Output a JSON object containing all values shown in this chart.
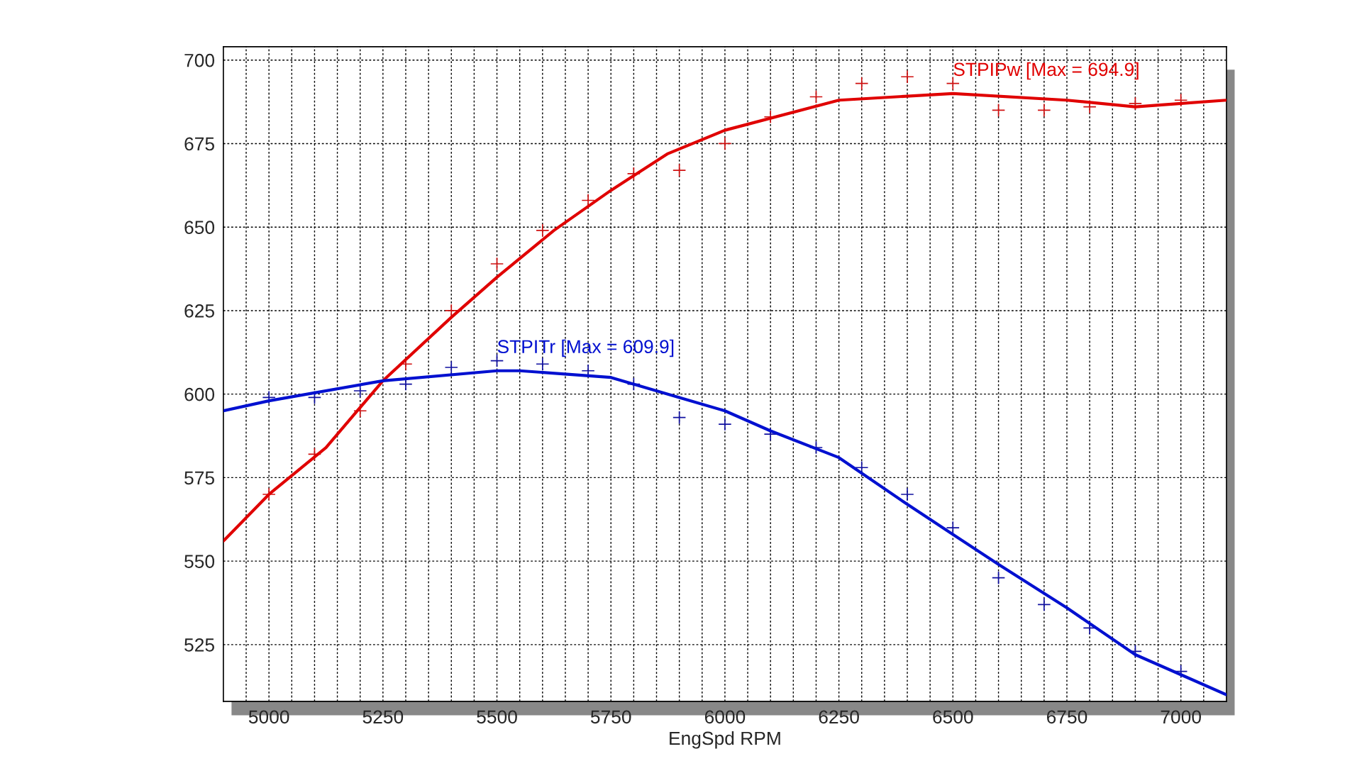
{
  "chart_data": {
    "type": "line",
    "xlabel": "EngSpd RPM",
    "xlim": [
      4900,
      7100
    ],
    "ylim": [
      508,
      704
    ],
    "xticks": [
      {
        "value": 4950,
        "label": null
      },
      5000,
      {
        "value": 5050,
        "label": null
      },
      {
        "value": 5100,
        "label": null
      },
      {
        "value": 5150,
        "label": null
      },
      {
        "value": 5200,
        "label": null
      },
      5250,
      {
        "value": 5300,
        "label": null
      },
      {
        "value": 5350,
        "label": null
      },
      {
        "value": 5400,
        "label": null
      },
      {
        "value": 5450,
        "label": null
      },
      5500,
      {
        "value": 5550,
        "label": null
      },
      {
        "value": 5600,
        "label": null
      },
      {
        "value": 5650,
        "label": null
      },
      {
        "value": 5700,
        "label": null
      },
      5750,
      {
        "value": 5800,
        "label": null
      },
      {
        "value": 5850,
        "label": null
      },
      {
        "value": 5900,
        "label": null
      },
      {
        "value": 5950,
        "label": null
      },
      6000,
      {
        "value": 6050,
        "label": null
      },
      {
        "value": 6100,
        "label": null
      },
      {
        "value": 6150,
        "label": null
      },
      {
        "value": 6200,
        "label": null
      },
      6250,
      {
        "value": 6300,
        "label": null
      },
      {
        "value": 6350,
        "label": null
      },
      {
        "value": 6400,
        "label": null
      },
      {
        "value": 6450,
        "label": null
      },
      6500,
      {
        "value": 6550,
        "label": null
      },
      {
        "value": 6600,
        "label": null
      },
      {
        "value": 6650,
        "label": null
      },
      {
        "value": 6700,
        "label": null
      },
      6750,
      {
        "value": 6800,
        "label": null
      },
      {
        "value": 6850,
        "label": null
      },
      {
        "value": 6900,
        "label": null
      },
      {
        "value": 6950,
        "label": null
      },
      7000,
      {
        "value": 7050,
        "label": null
      }
    ],
    "yticks": [
      525,
      550,
      575,
      600,
      625,
      650,
      675,
      700
    ],
    "grid": true,
    "legend": false,
    "series": [
      {
        "type": "scatter",
        "marker": "cross",
        "color": "#d01010",
        "x": [
          5000,
          5100,
          5200,
          5300,
          5400,
          5500,
          5600,
          5700,
          5800,
          5900,
          6000,
          6100,
          6200,
          6300,
          6400,
          6500,
          6600,
          6700,
          6800,
          6900,
          7000
        ],
        "values": [
          570,
          582,
          595,
          609,
          625,
          639,
          649,
          658,
          666,
          667,
          675,
          683,
          689,
          693,
          695,
          693,
          685,
          685,
          686,
          687,
          688
        ]
      },
      {
        "name": "STPIPw [Max = 694.9]",
        "color": "#e00000",
        "x": [
          4900,
          5000,
          5125,
          5250,
          5400,
          5500,
          5625,
          5750,
          5875,
          6000,
          6250,
          6500,
          6750,
          6900,
          7000,
          7100
        ],
        "values": [
          556,
          570,
          584,
          604,
          623,
          635,
          649,
          661,
          672,
          679,
          688,
          690,
          688,
          686,
          687,
          688
        ]
      },
      {
        "type": "scatter",
        "marker": "cross",
        "color": "#1010a0",
        "x": [
          5000,
          5100,
          5200,
          5300,
          5400,
          5500,
          5600,
          5700,
          5800,
          5900,
          6000,
          6100,
          6200,
          6300,
          6400,
          6500,
          6600,
          6700,
          6800,
          6900,
          7000
        ],
        "values": [
          599,
          599,
          601,
          603,
          608,
          610,
          609,
          607,
          603,
          593,
          591,
          588,
          584,
          578,
          570,
          560,
          545,
          537,
          530,
          523,
          517
        ]
      },
      {
        "name": "STPITr [Max = 609.9]",
        "color": "#0010d0",
        "x": [
          4900,
          5000,
          5250,
          5500,
          5550,
          5750,
          5900,
          6000,
          6100,
          6250,
          6400,
          6500,
          6600,
          6750,
          6900,
          7000,
          7100
        ],
        "values": [
          595,
          598,
          604,
          607,
          607,
          605,
          599,
          595,
          589,
          581,
          567,
          558,
          549,
          536,
          522,
          516,
          510
        ]
      }
    ]
  }
}
